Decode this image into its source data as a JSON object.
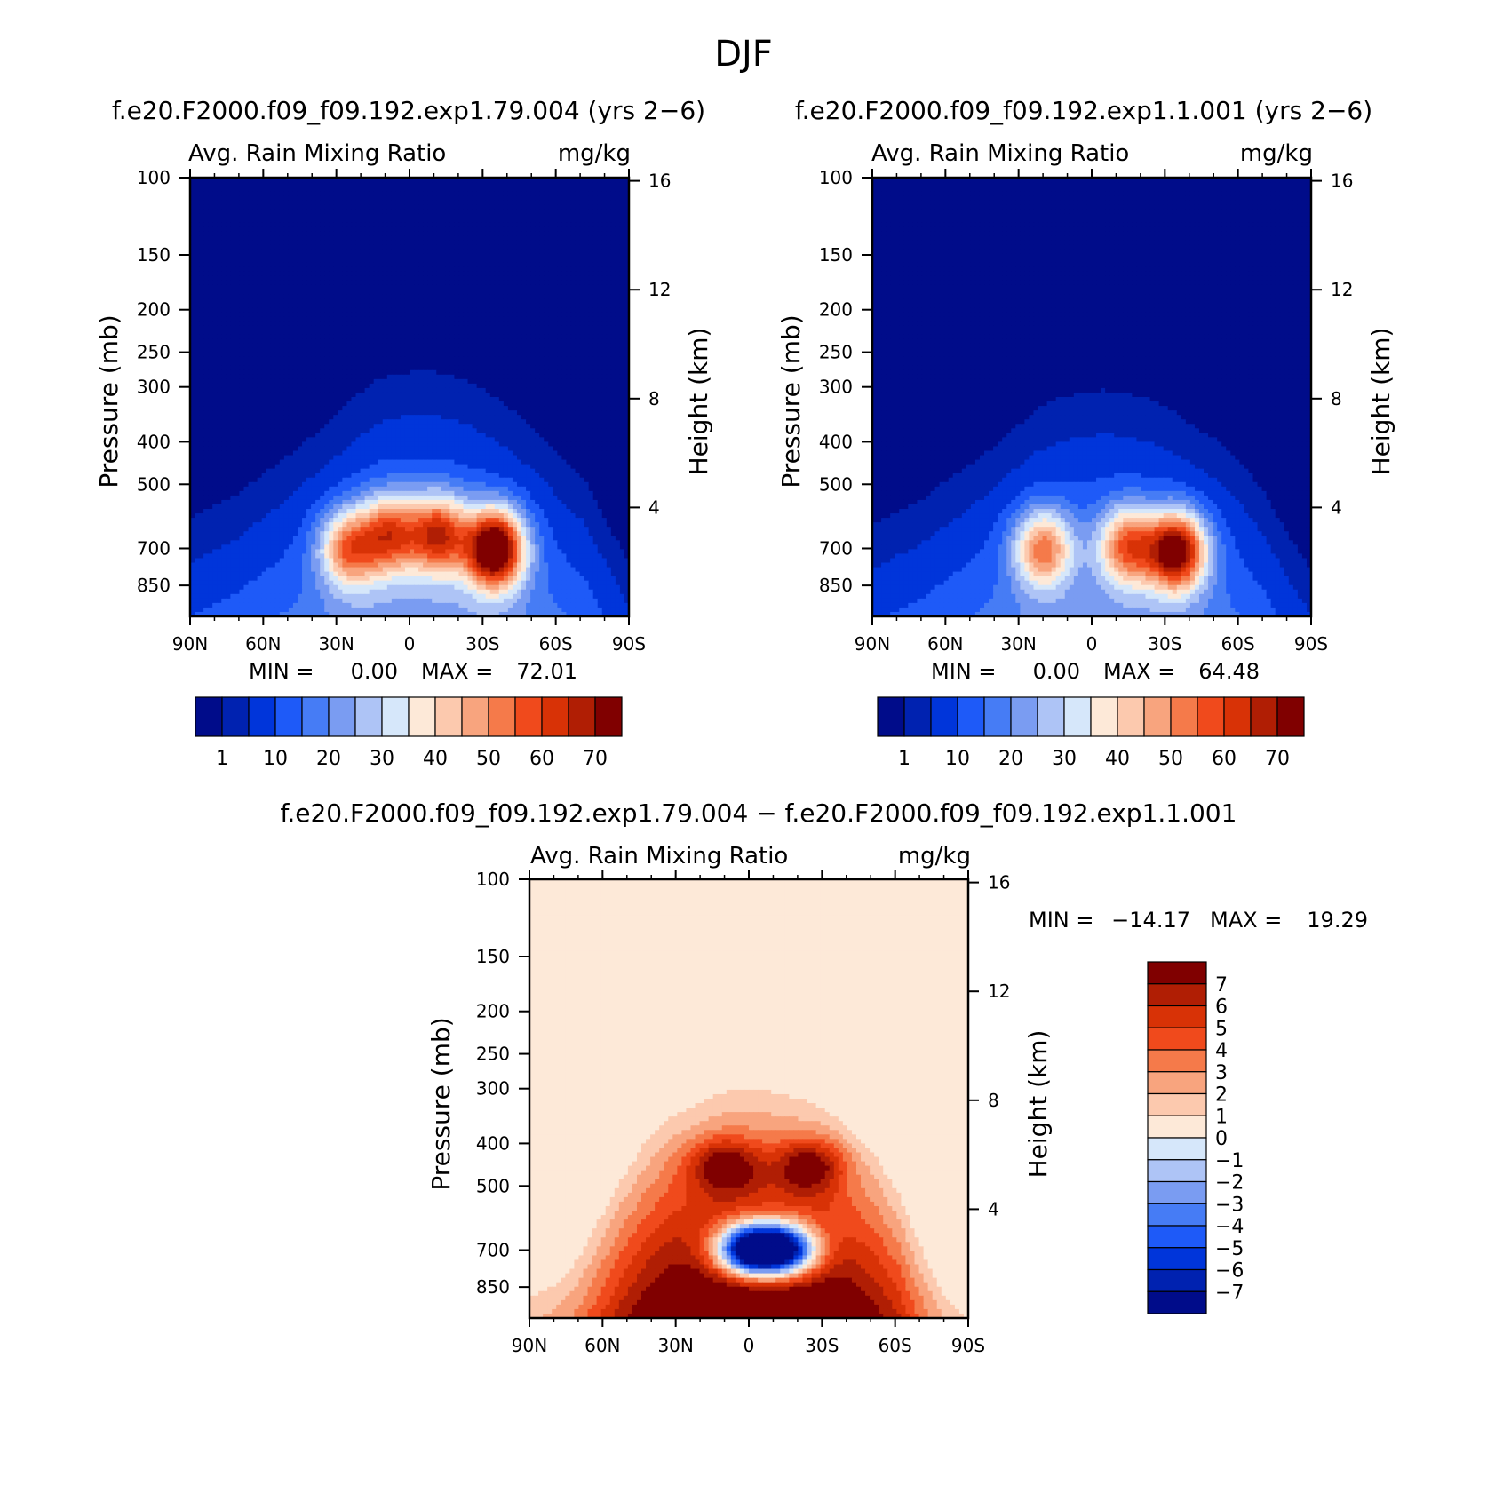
{
  "season_title": "DJF",
  "colors": {
    "abs_scale": [
      "#000c8a",
      "#0022b0",
      "#0035da",
      "#1e5af8",
      "#467cf5",
      "#7a9cf2",
      "#aec4f6",
      "#d6e7fa",
      "#fde9d8",
      "#fcc9ae",
      "#f8a47e",
      "#f57a4a",
      "#f04a1c",
      "#d83206",
      "#b01e04",
      "#800000"
    ],
    "diff_scale": [
      "#000c8a",
      "#0022b0",
      "#0035da",
      "#1e5af8",
      "#467cf5",
      "#7a9cf2",
      "#aec4f6",
      "#d6e7fa",
      "#fde9d8",
      "#fcc9ae",
      "#f8a47e",
      "#f57a4a",
      "#f04a1c",
      "#d83206",
      "#b01e04",
      "#800000"
    ]
  },
  "chart_data": [
    {
      "type": "heatmap",
      "title": "f.e20.F2000.f09_f09.192.exp1.79.004 (yrs 2−6)",
      "left_label": "Avg. Rain Mixing Ratio",
      "right_label": "mg/kg",
      "ylabel": "Pressure (mb)",
      "y2label": "Height (km)",
      "x_ticks": [
        "90N",
        "60N",
        "30N",
        "0",
        "30S",
        "60S",
        "90S"
      ],
      "y_ticks": [
        "100",
        "150",
        "200",
        "250",
        "300",
        "400",
        "500",
        "700",
        "850"
      ],
      "y2_ticks": [
        "16",
        "12",
        "8",
        "4"
      ],
      "min_label": "MIN =",
      "min_value": "0.00",
      "max_label": "MAX =",
      "max_value": "72.01",
      "colorbar_labels": [
        "1",
        "10",
        "20",
        "30",
        "40",
        "50",
        "60",
        "70"
      ],
      "field": {
        "base_level": 1,
        "envelope_top_hpa": [
          600,
          560,
          530,
          480,
          440,
          400,
          360,
          320,
          290,
          280,
          275,
          280,
          290,
          310,
          340,
          380,
          430,
          480,
          600,
          750
        ],
        "blobs": [
          {
            "lat": 25,
            "p": 700,
            "value": 40
          },
          {
            "lat": 8,
            "p": 650,
            "value": 42
          },
          {
            "lat": -12,
            "p": 650,
            "value": 48
          },
          {
            "lat": -35,
            "p": 700,
            "value": 72
          }
        ]
      }
    },
    {
      "type": "heatmap",
      "title": "f.e20.F2000.f09_f09.192.exp1.1.001 (yrs 2−6)",
      "left_label": "Avg. Rain Mixing Ratio",
      "right_label": "mg/kg",
      "ylabel": "Pressure (mb)",
      "y2label": "Height (km)",
      "x_ticks": [
        "90N",
        "60N",
        "30N",
        "0",
        "30S",
        "60S",
        "90S"
      ],
      "y_ticks": [
        "100",
        "150",
        "200",
        "250",
        "300",
        "400",
        "500",
        "700",
        "850"
      ],
      "y2_ticks": [
        "16",
        "12",
        "8",
        "4"
      ],
      "min_label": "MIN =",
      "min_value": "0.00",
      "max_label": "MAX =",
      "max_value": "64.48",
      "colorbar_labels": [
        "1",
        "10",
        "20",
        "30",
        "40",
        "50",
        "60",
        "70"
      ],
      "field": {
        "base_level": 1,
        "envelope_top_hpa": [
          620,
          580,
          550,
          500,
          460,
          420,
          380,
          340,
          320,
          310,
          305,
          310,
          320,
          340,
          370,
          400,
          450,
          520,
          650,
          780
        ],
        "blobs": [
          {
            "lat": 20,
            "p": 700,
            "value": 40
          },
          {
            "lat": -15,
            "p": 690,
            "value": 42
          },
          {
            "lat": -35,
            "p": 710,
            "value": 64
          }
        ]
      }
    },
    {
      "type": "heatmap",
      "title": "f.e20.F2000.f09_f09.192.exp1.79.004 − f.e20.F2000.f09_f09.192.exp1.1.001",
      "left_label": "Avg. Rain Mixing Ratio",
      "right_label": "mg/kg",
      "ylabel": "Pressure (mb)",
      "y2label": "Height (km)",
      "x_ticks": [
        "90N",
        "60N",
        "30N",
        "0",
        "30S",
        "60S",
        "90S"
      ],
      "y_ticks": [
        "100",
        "150",
        "200",
        "250",
        "300",
        "400",
        "500",
        "700",
        "850"
      ],
      "y2_ticks": [
        "16",
        "12",
        "8",
        "4"
      ],
      "min_label": "MIN =",
      "min_value": "−14.17",
      "max_label": "MAX =",
      "max_value": "19.29",
      "colorbar_labels": [
        "7",
        "6",
        "5",
        "4",
        "3",
        "2",
        "1",
        "0",
        "−1",
        "−2",
        "−3",
        "−4",
        "−5",
        "−6",
        "−7"
      ],
      "field": {
        "background_value": 0.5,
        "envelope_top_hpa": [
          900,
          850,
          750,
          600,
          480,
          400,
          350,
          330,
          310,
          300,
          300,
          310,
          320,
          340,
          380,
          430,
          520,
          700,
          900,
          1000
        ],
        "blobs": [
          {
            "lat": 10,
            "p": 450,
            "value": 8
          },
          {
            "lat": -25,
            "p": 450,
            "value": 8
          },
          {
            "lat": 0,
            "p": 700,
            "value": -7
          },
          {
            "lat": -15,
            "p": 700,
            "value": -6
          }
        ]
      }
    }
  ]
}
